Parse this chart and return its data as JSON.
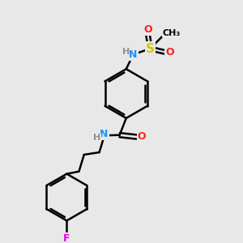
{
  "background_color": "#e8e8e8",
  "bond_color": "#000000",
  "bond_width": 1.8,
  "atom_colors": {
    "N": "#1e90ff",
    "O": "#ff2020",
    "S": "#cccc00",
    "F": "#ee00ee",
    "H": "#909090",
    "C": "#000000"
  },
  "font_size_atom": 9,
  "fig_size": [
    3.0,
    3.0
  ],
  "dpi": 100
}
